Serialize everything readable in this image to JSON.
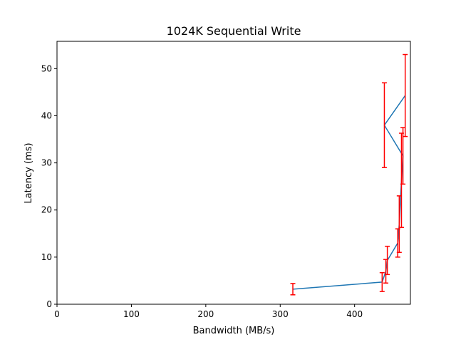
{
  "chart_data": {
    "type": "line",
    "title": "1024K  Sequential Write",
    "xlabel": "Bandwidth (MB/s)",
    "ylabel": "Latency (ms)",
    "xlim": [
      0,
      475
    ],
    "ylim": [
      0,
      55.8
    ],
    "xticks": [
      0,
      100,
      200,
      300,
      400
    ],
    "yticks": [
      0,
      10,
      20,
      30,
      40,
      50
    ],
    "grid": false,
    "colors": {
      "line": "#1f77b4",
      "error": "#ff0000",
      "axis": "#000000"
    },
    "series": [
      {
        "points": [
          {
            "x": 317,
            "y": 3.2,
            "err": 1.2
          },
          {
            "x": 437,
            "y": 4.7,
            "err": 2.0
          },
          {
            "x": 442,
            "y": 7.0,
            "err": 2.5
          },
          {
            "x": 444,
            "y": 9.3,
            "err": 3.0
          },
          {
            "x": 458,
            "y": 13.0,
            "err": 3.0
          },
          {
            "x": 460,
            "y": 17.0,
            "err": 6.0
          },
          {
            "x": 463,
            "y": 26.3,
            "err": 10.0
          },
          {
            "x": 465,
            "y": 31.5,
            "err": 6.0
          },
          {
            "x": 440,
            "y": 38.0,
            "err": 9.0
          },
          {
            "x": 468,
            "y": 44.3,
            "err": 8.7
          }
        ]
      }
    ]
  }
}
